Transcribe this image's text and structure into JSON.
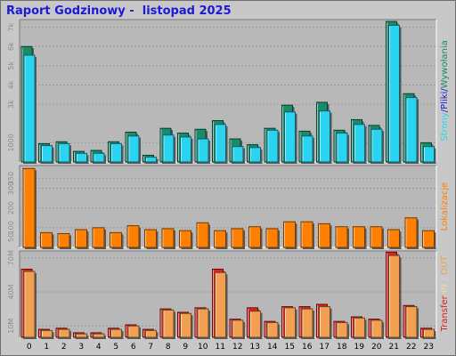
{
  "title": "Raport Godzinowy -  listopad 2025",
  "colors": {
    "frame_bg": "#c8c8c8",
    "plot_bg": "#b8b8b8",
    "pages": "#1a8a6a",
    "files": "#2ad4f0",
    "tin": "#e02020",
    "tout": "#f0a050",
    "locations": "#ff8000",
    "grid": "#9c9c9c",
    "axis_text": "#8c8c8c",
    "title": "#1a1ad8"
  },
  "chart_data": [
    {
      "type": "bar",
      "categories": [
        "0",
        "1",
        "2",
        "3",
        "4",
        "5",
        "6",
        "7",
        "8",
        "9",
        "10",
        "11",
        "12",
        "13",
        "14",
        "15",
        "16",
        "17",
        "18",
        "19",
        "20",
        "21",
        "22",
        "23"
      ],
      "ylim": [
        0,
        7400
      ],
      "yticks": [
        {
          "value": 1000,
          "label": "1000"
        },
        {
          "value": 3000,
          "label": "3k"
        },
        {
          "value": 4000,
          "label": "4k"
        },
        {
          "value": 5000,
          "label": "5k"
        },
        {
          "value": 6000,
          "label": "6k"
        },
        {
          "value": 7000,
          "label": "7k"
        }
      ],
      "side_label": [
        {
          "text": "Strony",
          "color": "#2ad4f0"
        },
        {
          "text": "/",
          "color": "#1a1ad8"
        },
        {
          "text": "Pliki",
          "color": "#1a1ad8"
        },
        {
          "text": "/",
          "color": "#1a1ad8"
        },
        {
          "text": "Wywołania",
          "color": "#1a8a6a"
        }
      ],
      "series": [
        {
          "values": [
            6000,
            950,
            1050,
            550,
            600,
            1050,
            1550,
            350,
            1750,
            1500,
            1700,
            2150,
            1200,
            900,
            1750,
            2950,
            1600,
            3100,
            1650,
            2200,
            1900,
            7300,
            3550,
            1000
          ]
        },
        {
          "values": [
            5550,
            850,
            950,
            450,
            450,
            950,
            1350,
            250,
            1400,
            1300,
            1200,
            1950,
            800,
            750,
            1650,
            2600,
            1350,
            2650,
            1500,
            1950,
            1700,
            7100,
            3350,
            800
          ]
        }
      ]
    },
    {
      "type": "bar",
      "categories": [
        "0",
        "1",
        "2",
        "3",
        "4",
        "5",
        "6",
        "7",
        "8",
        "9",
        "10",
        "11",
        "12",
        "13",
        "14",
        "15",
        "16",
        "17",
        "18",
        "19",
        "20",
        "21",
        "22",
        "23"
      ],
      "ylim": [
        0,
        415
      ],
      "yticks": [
        {
          "value": 50,
          "label": "50"
        },
        {
          "value": 100,
          "label": "100"
        },
        {
          "value": 200,
          "label": "200"
        },
        {
          "value": 300,
          "label": "300"
        },
        {
          "value": 350,
          "label": "350"
        }
      ],
      "side_label": [
        {
          "text": "Lokalizacje",
          "color": "#ff8000"
        }
      ],
      "series": [
        {
          "values": [
            400,
            75,
            70,
            90,
            100,
            75,
            110,
            90,
            95,
            85,
            125,
            85,
            95,
            105,
            95,
            130,
            130,
            120,
            105,
            105,
            105,
            90,
            150,
            85
          ]
        }
      ]
    },
    {
      "type": "bar",
      "categories": [
        "0",
        "1",
        "2",
        "3",
        "4",
        "5",
        "6",
        "7",
        "8",
        "9",
        "10",
        "11",
        "12",
        "13",
        "14",
        "15",
        "16",
        "17",
        "18",
        "19",
        "20",
        "21",
        "22",
        "23"
      ],
      "ylim": [
        0,
        76
      ],
      "yticks": [
        {
          "value": 10,
          "label": "10M"
        },
        {
          "value": 40,
          "label": "40M"
        },
        {
          "value": 70,
          "label": "70M"
        }
      ],
      "xticks": [
        "0",
        "1",
        "2",
        "3",
        "4",
        "5",
        "6",
        "7",
        "8",
        "9",
        "10",
        "11",
        "12",
        "13",
        "14",
        "15",
        "16",
        "17",
        "18",
        "19",
        "20",
        "21",
        "22",
        "23"
      ],
      "side_label": [
        {
          "text": "Transfer",
          "color": "#e02020"
        },
        {
          "text": " IN",
          "color": "#e8d8a0"
        },
        {
          "text": " / ",
          "color": "#d8d8d8"
        },
        {
          "text": "OUT",
          "color": "#f0a050"
        }
      ],
      "series": [
        {
          "values": [
            60,
            7,
            8,
            4,
            4,
            8,
            11,
            7,
            25,
            22,
            26,
            60,
            16,
            26,
            14,
            27,
            27,
            29,
            14,
            18,
            16,
            75,
            28,
            8
          ]
        },
        {
          "values": [
            58,
            6,
            7,
            3,
            3,
            7,
            10,
            6,
            24,
            21,
            25,
            57,
            15,
            23,
            13,
            26,
            25,
            27,
            13,
            17,
            15,
            72,
            27,
            7
          ]
        }
      ]
    }
  ]
}
